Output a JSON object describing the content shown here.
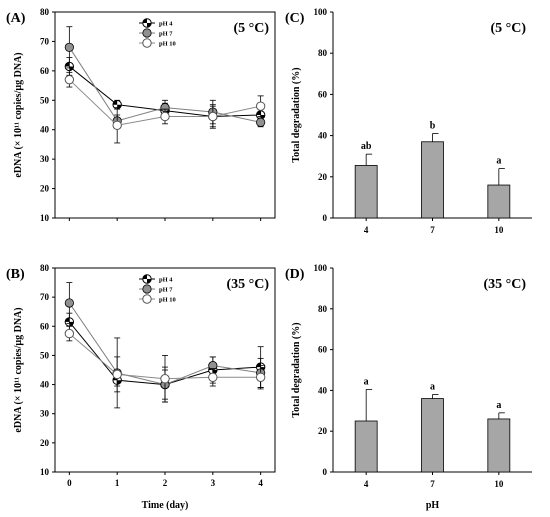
{
  "chart_data": [
    {
      "panel": "(A)",
      "type": "line",
      "annotation": "(5 °C)",
      "xlabel": "",
      "ylabel": "eDNA (× 10¹¹ copies/µg DNA)",
      "x": [
        0,
        1,
        2,
        3,
        4
      ],
      "xlim": [
        -0.3,
        4.3
      ],
      "ylim": [
        10,
        80
      ],
      "yticks": [
        10,
        20,
        30,
        40,
        50,
        60,
        70,
        80
      ],
      "legend_position": "top-center",
      "series": [
        {
          "name": "pH 4",
          "values": [
            61.5,
            48.5,
            46.5,
            44.5,
            45.0
          ],
          "errors": [
            3,
            1.5,
            2.5,
            4,
            2.5
          ],
          "marker": "half-filled"
        },
        {
          "name": "pH 7",
          "values": [
            68.0,
            43.0,
            47.5,
            46.0,
            42.5
          ],
          "errors": [
            7,
            2,
            2.5,
            4,
            1.5
          ],
          "marker": "gray-filled"
        },
        {
          "name": "pH 10",
          "values": [
            57.0,
            41.5,
            44.5,
            44.5,
            48.0
          ],
          "errors": [
            2.5,
            6,
            2.5,
            3.5,
            3.5
          ],
          "marker": "open"
        }
      ]
    },
    {
      "panel": "(C)",
      "type": "bar",
      "annotation": "(5 °C)",
      "xlabel": "",
      "ylabel": "Total degradation (%)",
      "categories": [
        "4",
        "7",
        "10"
      ],
      "values": [
        25.5,
        37.0,
        16.0
      ],
      "errors": [
        5.5,
        4.0,
        8.0
      ],
      "significance": [
        "ab",
        "b",
        "a"
      ],
      "ylim": [
        0,
        100
      ],
      "yticks": [
        0,
        20,
        40,
        60,
        80,
        100
      ]
    },
    {
      "panel": "(B)",
      "type": "line",
      "annotation": "(35 °C)",
      "xlabel": "Time (day)",
      "ylabel": "eDNA (× 10¹¹ copies/µg DNA)",
      "x": [
        0,
        1,
        2,
        3,
        4
      ],
      "xlim": [
        -0.3,
        4.3
      ],
      "ylim": [
        10,
        80
      ],
      "yticks": [
        10,
        20,
        30,
        40,
        50,
        60,
        70,
        80
      ],
      "xticks": [
        0,
        1,
        2,
        3,
        4
      ],
      "legend_position": "top-center",
      "series": [
        {
          "name": "pH 4",
          "values": [
            61.5,
            41.5,
            40.0,
            45.0,
            46.0
          ],
          "errors": [
            3,
            2,
            6,
            4.5,
            7
          ],
          "marker": "half-filled"
        },
        {
          "name": "pH 7",
          "values": [
            68.0,
            44.0,
            40.0,
            46.5,
            44.0
          ],
          "errors": [
            7,
            12,
            5,
            3,
            5
          ],
          "marker": "gray-filled"
        },
        {
          "name": "pH 10",
          "values": [
            57.5,
            43.5,
            42.0,
            42.5,
            42.5
          ],
          "errors": [
            2.5,
            6,
            8,
            3,
            4
          ],
          "marker": "open"
        }
      ]
    },
    {
      "panel": "(D)",
      "type": "bar",
      "annotation": "(35 °C)",
      "xlabel": "pH",
      "ylabel": "Total degradation (%)",
      "categories": [
        "4",
        "7",
        "10"
      ],
      "values": [
        25.0,
        36.0,
        26.0
      ],
      "errors": [
        15.5,
        2.0,
        3.0
      ],
      "significance": [
        "a",
        "a",
        "a"
      ],
      "ylim": [
        0,
        100
      ],
      "yticks": [
        0,
        20,
        40,
        60,
        80,
        100
      ]
    }
  ],
  "colors": {
    "bar_fill": "#a6a6a6",
    "ph4_marker": "#000000",
    "ph7_marker": "#909090",
    "ph10_marker": "#ffffff",
    "ph4_line": "#000000",
    "ph7_line": "#7f7f7f",
    "ph10_line": "#8a8a8a"
  }
}
